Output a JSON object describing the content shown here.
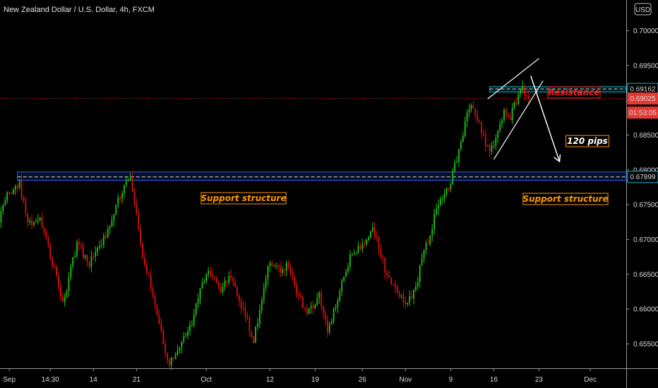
{
  "header": {
    "symbol_title": "New Zealand Dollar / U.S. Dollar, 4h, FXCM",
    "currency": "USD"
  },
  "colors": {
    "background": "#000000",
    "bull": "#22c414",
    "bear": "#e0100c",
    "resistance_box": "#00bcd4",
    "support_box": "#2962ff",
    "label_orange": "#ff9800",
    "label_red": "#ff1e1e",
    "price_line": "#d32f2f"
  },
  "chart_data": {
    "type": "candlestick",
    "y_axis": {
      "min": 0.6515,
      "max": 0.7044,
      "ticks": [
        "0.70000",
        "0.69500",
        "0.69000",
        "0.68500",
        "0.68000",
        "0.67500",
        "0.67000",
        "0.66500",
        "0.66000",
        "0.65500"
      ],
      "tick_values": [
        0.7,
        0.695,
        0.69,
        0.685,
        0.68,
        0.675,
        0.67,
        0.665,
        0.66,
        0.655
      ]
    },
    "x_axis": {
      "labels": [
        "Sep",
        "14:30",
        "14",
        "21",
        "Oct",
        "12",
        "19",
        "26",
        "Nov",
        "9",
        "16",
        "23",
        "Dec"
      ],
      "label_index": [
        4,
        24,
        45,
        66,
        100,
        131,
        153,
        176,
        197,
        219,
        240,
        262,
        287
      ],
      "total_bars": 305
    },
    "price_path": [
      [
        0,
        0.6725
      ],
      [
        4,
        0.6765
      ],
      [
        10,
        0.678
      ],
      [
        14,
        0.672
      ],
      [
        20,
        0.673
      ],
      [
        27,
        0.6655
      ],
      [
        31,
        0.6605
      ],
      [
        38,
        0.6695
      ],
      [
        44,
        0.6665
      ],
      [
        52,
        0.6705
      ],
      [
        57,
        0.675
      ],
      [
        62,
        0.6785
      ],
      [
        64,
        0.6792
      ],
      [
        66,
        0.675
      ],
      [
        70,
        0.668
      ],
      [
        75,
        0.662
      ],
      [
        80,
        0.655
      ],
      [
        83,
        0.652
      ],
      [
        88,
        0.6545
      ],
      [
        94,
        0.658
      ],
      [
        98,
        0.663
      ],
      [
        102,
        0.666
      ],
      [
        108,
        0.662
      ],
      [
        112,
        0.665
      ],
      [
        116,
        0.6625
      ],
      [
        120,
        0.659
      ],
      [
        124,
        0.6555
      ],
      [
        128,
        0.661
      ],
      [
        131,
        0.6665
      ],
      [
        136,
        0.6655
      ],
      [
        141,
        0.6665
      ],
      [
        145,
        0.6625
      ],
      [
        150,
        0.6595
      ],
      [
        153,
        0.6605
      ],
      [
        156,
        0.6625
      ],
      [
        160,
        0.6565
      ],
      [
        164,
        0.6605
      ],
      [
        168,
        0.665
      ],
      [
        172,
        0.668
      ],
      [
        177,
        0.669
      ],
      [
        182,
        0.6715
      ],
      [
        186,
        0.668
      ],
      [
        189,
        0.6645
      ],
      [
        194,
        0.6625
      ],
      [
        198,
        0.6605
      ],
      [
        203,
        0.663
      ],
      [
        207,
        0.6685
      ],
      [
        210,
        0.6705
      ],
      [
        213,
        0.6745
      ],
      [
        217,
        0.677
      ],
      [
        219,
        0.6775
      ],
      [
        222,
        0.6805
      ],
      [
        225,
        0.6835
      ],
      [
        227,
        0.6865
      ],
      [
        229,
        0.6892
      ],
      [
        232,
        0.6885
      ],
      [
        235,
        0.6858
      ],
      [
        239,
        0.6822
      ],
      [
        242,
        0.6845
      ],
      [
        246,
        0.6882
      ],
      [
        249,
        0.6875
      ],
      [
        251,
        0.6892
      ],
      [
        253,
        0.6905
      ],
      [
        255,
        0.6922
      ],
      [
        257,
        0.69025
      ]
    ],
    "current_price": 0.69025,
    "resistance_zone": {
      "low": 0.6912,
      "high": 0.69195,
      "value": 0.69162
    },
    "support_zone": {
      "low": 0.6785,
      "high": 0.6797,
      "value": 0.67899
    },
    "countdown": "01:53:05",
    "annotations": {
      "resistance": "Resistance",
      "support_left": "Support structure",
      "support_right": "Support structure",
      "pips": "120 pips"
    }
  }
}
